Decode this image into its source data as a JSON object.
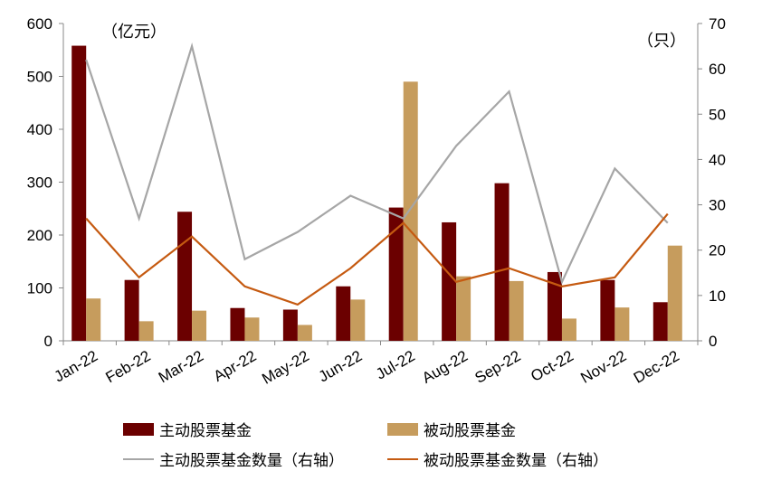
{
  "chart_data": {
    "type": "bar",
    "categories": [
      "Jan-22",
      "Feb-22",
      "Mar-22",
      "Apr-22",
      "May-22",
      "Jun-22",
      "Jul-22",
      "Aug-22",
      "Sep-22",
      "Oct-22",
      "Nov-22",
      "Dec-22"
    ],
    "series": [
      {
        "name": "主动股票基金",
        "type": "bar",
        "axis": "left",
        "color": "#6b0000",
        "values": [
          558,
          115,
          244,
          62,
          59,
          103,
          252,
          224,
          298,
          130,
          115,
          73
        ]
      },
      {
        "name": "被动股票基金",
        "type": "bar",
        "axis": "left",
        "color": "#c69c5d",
        "values": [
          80,
          37,
          57,
          44,
          30,
          78,
          490,
          122,
          113,
          42,
          63,
          180
        ]
      },
      {
        "name": "主动股票基金数量（右轴）",
        "type": "line",
        "axis": "right",
        "color": "#a6a6a6",
        "values": [
          62,
          27,
          65,
          18,
          24,
          32,
          27,
          43,
          55,
          13,
          38,
          26
        ]
      },
      {
        "name": "被动股票基金数量（右轴）",
        "type": "line",
        "axis": "right",
        "color": "#c55a11",
        "values": [
          27,
          14,
          23,
          12,
          8,
          16,
          26,
          13,
          16,
          12,
          14,
          28
        ]
      }
    ],
    "y_left": {
      "unit": "（亿元）",
      "ylim": [
        0,
        600
      ],
      "ticks": [
        0,
        100,
        200,
        300,
        400,
        500,
        600
      ]
    },
    "y_right": {
      "unit": "（只）",
      "ylim": [
        0,
        70
      ],
      "ticks": [
        0,
        10,
        20,
        30,
        40,
        50,
        60,
        70
      ]
    },
    "grid": false,
    "legend_position": "bottom"
  }
}
